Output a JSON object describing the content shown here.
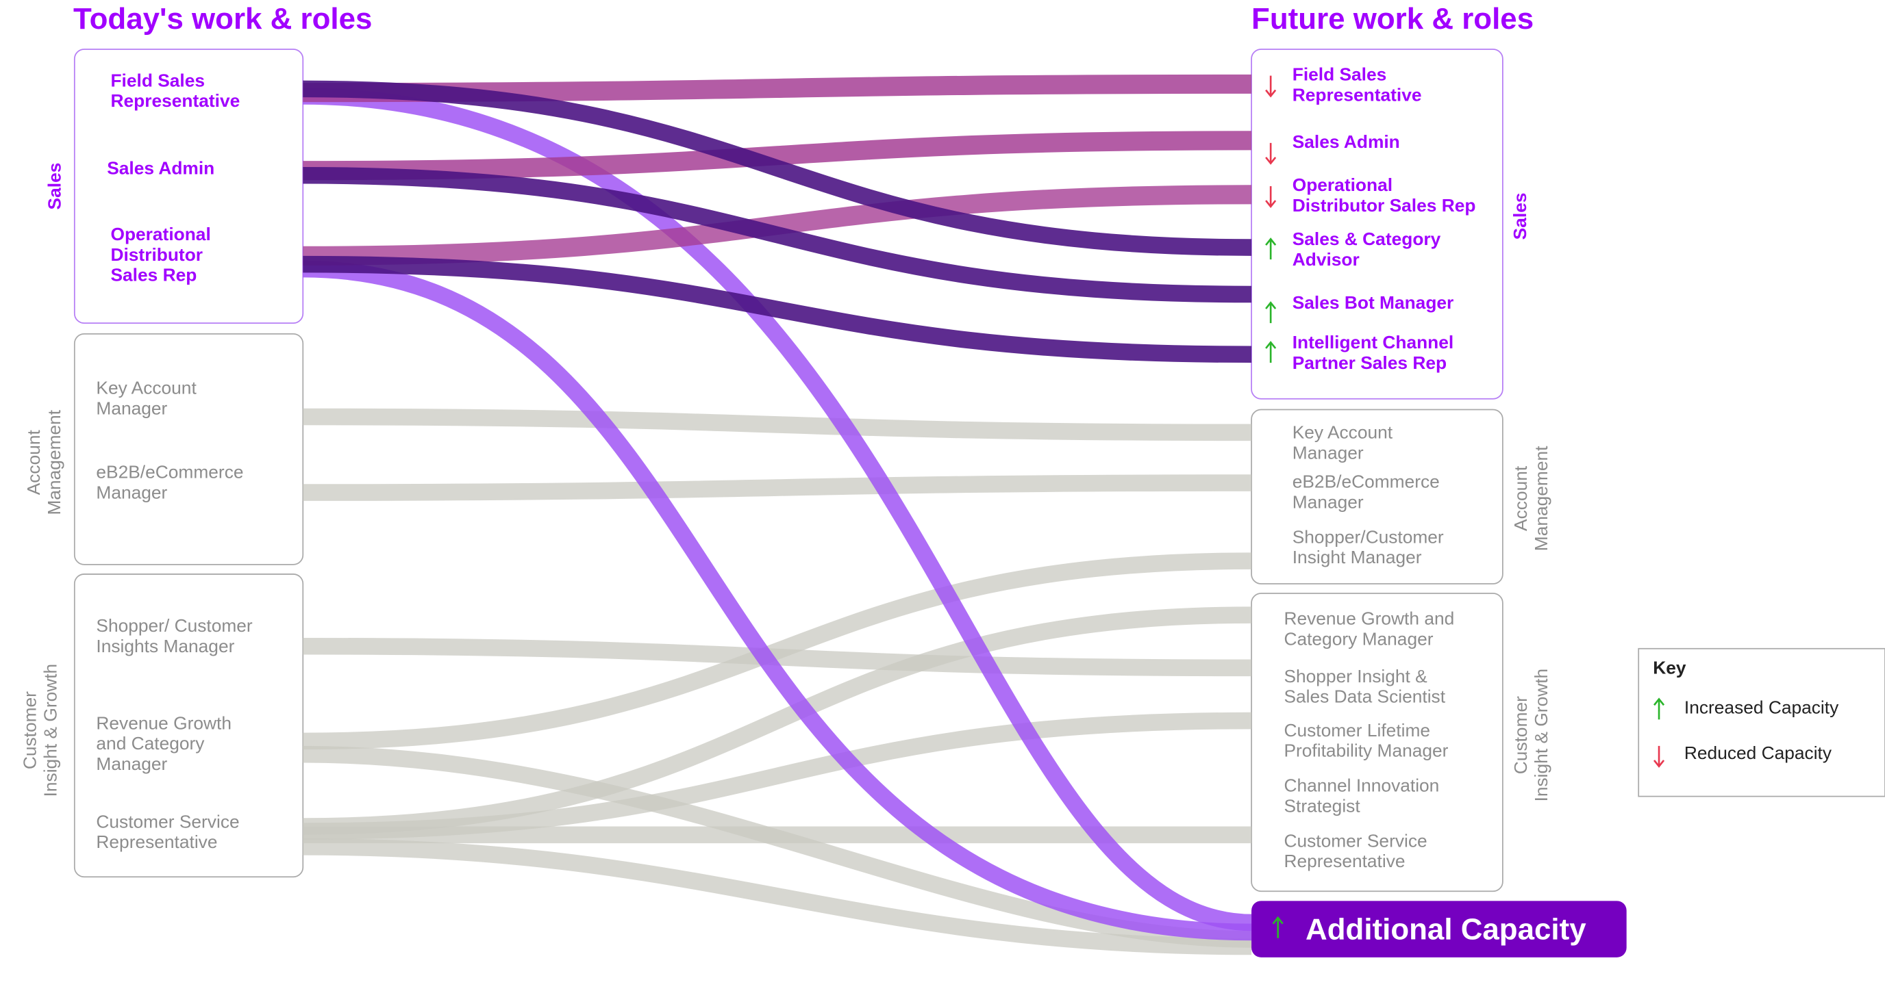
{
  "left": {
    "title": "Today's work & roles",
    "groups": [
      {
        "label": "Sales",
        "style": "sales",
        "roles": [
          "Field Sales\nRepresentative",
          "Sales Admin",
          "Operational\nDistributor\nSales Rep"
        ]
      },
      {
        "label": "Account\nManagement",
        "style": "other",
        "roles": [
          "Key Account\nManager",
          "eB2B/eCommerce\nManager"
        ]
      },
      {
        "label": "Customer\nInsight & Growth",
        "style": "other",
        "roles": [
          "Shopper/ Customer\nInsights Manager",
          "Revenue Growth\nand Category\nManager",
          "Customer Service\nRepresentative"
        ]
      }
    ]
  },
  "right": {
    "title": "Future work & roles",
    "groups": [
      {
        "label": "Sales",
        "style": "sales",
        "roles": [
          {
            "name": "Field Sales\nRepresentative",
            "trend": "down"
          },
          {
            "name": "Sales Admin",
            "trend": "down"
          },
          {
            "name": "Operational\nDistributor Sales Rep",
            "trend": "down"
          },
          {
            "name": "Sales & Category\nAdvisor",
            "trend": "up"
          },
          {
            "name": "Sales Bot Manager",
            "trend": "up"
          },
          {
            "name": "Intelligent Channel\nPartner Sales Rep",
            "trend": "up"
          }
        ]
      },
      {
        "label": "Account\nManagement",
        "style": "other",
        "roles": [
          {
            "name": "Key Account\nManager"
          },
          {
            "name": "eB2B/eCommerce\nManager"
          },
          {
            "name": "Shopper/Customer\nInsight Manager"
          }
        ]
      },
      {
        "label": "Customer\nInsight & Growth",
        "style": "other",
        "roles": [
          {
            "name": "Revenue Growth and\nCategory Manager"
          },
          {
            "name": "Shopper Insight &\nSales Data Scientist"
          },
          {
            "name": "Customer Lifetime\nProfitability Manager"
          },
          {
            "name": "Channel Innovation\nStrategist"
          },
          {
            "name": "Customer Service\nRepresentative"
          }
        ]
      }
    ],
    "additional": {
      "label": "Additional Capacity",
      "trend": "up"
    }
  },
  "key": {
    "title": "Key",
    "items": [
      {
        "label": "Increased Capacity",
        "trend": "up"
      },
      {
        "label": "Reduced Capacity",
        "trend": "down"
      }
    ]
  }
}
